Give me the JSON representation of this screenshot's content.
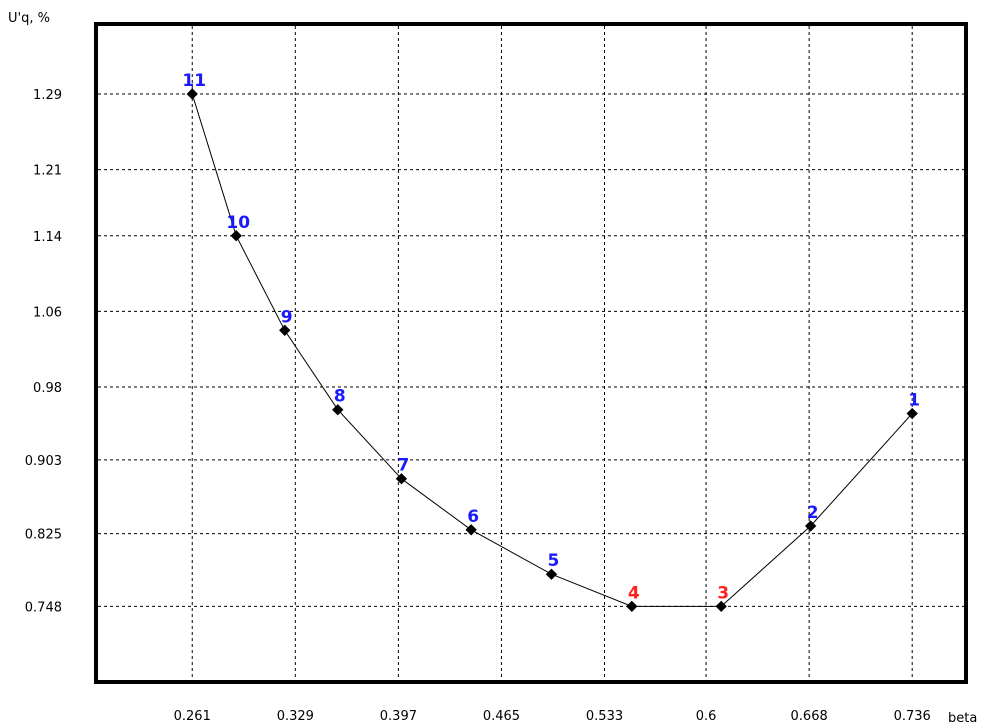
{
  "chart_data": {
    "type": "line",
    "xlabel": "beta",
    "ylabel": "U'q, %",
    "x_ticks": [
      "0.261",
      "0.329",
      "0.397",
      "0.465",
      "0.533",
      "0.6",
      "0.668",
      "0.736"
    ],
    "y_ticks": [
      "1.29",
      "1.21",
      "1.14",
      "1.06",
      "0.98",
      "0.903",
      "0.825",
      "0.748"
    ],
    "xlim": [
      0.1975,
      0.7715
    ],
    "ylim": [
      0.668,
      1.364
    ],
    "grid": true,
    "legend": "none",
    "line_color": "#000000",
    "point_color": "#000000",
    "label_colors": {
      "normal": "#1a1aff",
      "highlight": "#ff2020"
    },
    "points": [
      {
        "label": "1",
        "x": 0.736,
        "y": 0.952,
        "highlight": false
      },
      {
        "label": "2",
        "x": 0.669,
        "y": 0.833,
        "highlight": false
      },
      {
        "label": "3",
        "x": 0.61,
        "y": 0.748,
        "highlight": true
      },
      {
        "label": "4",
        "x": 0.551,
        "y": 0.748,
        "highlight": true
      },
      {
        "label": "5",
        "x": 0.498,
        "y": 0.782,
        "highlight": false
      },
      {
        "label": "6",
        "x": 0.445,
        "y": 0.829,
        "highlight": false
      },
      {
        "label": "7",
        "x": 0.399,
        "y": 0.883,
        "highlight": false
      },
      {
        "label": "8",
        "x": 0.357,
        "y": 0.956,
        "highlight": false
      },
      {
        "label": "9",
        "x": 0.322,
        "y": 1.04,
        "highlight": false
      },
      {
        "label": "10",
        "x": 0.29,
        "y": 1.14,
        "highlight": false
      },
      {
        "label": "11",
        "x": 0.261,
        "y": 1.29,
        "highlight": false
      }
    ]
  }
}
